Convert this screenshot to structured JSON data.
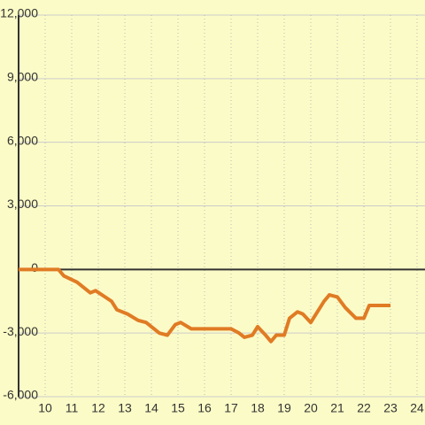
{
  "chart_data": {
    "type": "line",
    "xlim": [
      9,
      24.3
    ],
    "xticks": [
      10,
      11,
      12,
      13,
      14,
      15,
      16,
      17,
      18,
      19,
      20,
      21,
      22,
      23,
      24
    ],
    "ylim": [
      -6000,
      12000
    ],
    "yticks": [
      {
        "value": -6000,
        "label": "-6,000"
      },
      {
        "value": -3000,
        "label": "-3,000"
      },
      0,
      {
        "value": 3000,
        "label": "3,000"
      },
      {
        "value": 6000,
        "label": "6,000"
      },
      {
        "value": 9000,
        "label": "9,000"
      },
      {
        "value": 12000,
        "label": "12,000"
      }
    ],
    "grid": true,
    "series": [
      {
        "color": "#e07b24",
        "x": [
          9,
          10.5,
          10.7,
          11.2,
          11.7,
          11.9,
          12.5,
          12.7,
          13.1,
          13.5,
          13.8,
          14.3,
          14.6,
          14.9,
          15.1,
          15.5,
          16,
          17,
          17.3,
          17.5,
          17.8,
          18,
          18.3,
          18.5,
          18.7,
          19,
          19.2,
          19.5,
          19.7,
          20,
          20.2,
          20.5,
          20.7,
          21,
          21.3,
          21.7,
          22,
          22.2,
          23
        ],
        "values": [
          0,
          0,
          -300,
          -600,
          -1100,
          -1000,
          -1500,
          -1900,
          -2100,
          -2400,
          -2500,
          -3000,
          -3100,
          -2600,
          -2500,
          -2800,
          -2800,
          -2800,
          -3000,
          -3200,
          -3100,
          -2700,
          -3100,
          -3400,
          -3100,
          -3100,
          -2300,
          -2000,
          -2100,
          -2500,
          -2100,
          -1500,
          -1200,
          -1300,
          -1800,
          -2300,
          -2300,
          -1700,
          -1700
        ]
      }
    ]
  }
}
